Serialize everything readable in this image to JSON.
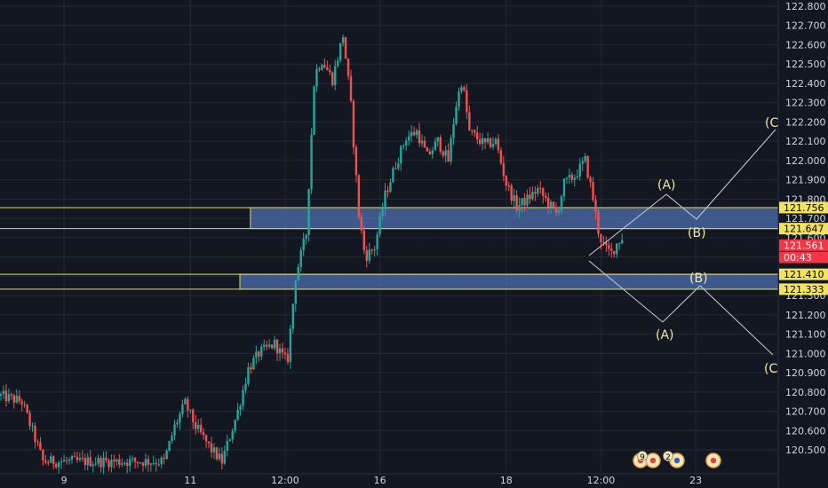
{
  "chart_data": {
    "type": "candlestick",
    "title": "",
    "xlabel": "",
    "ylabel": "",
    "ylim": [
      120.44,
      122.84
    ],
    "grid": true,
    "x_ticks": [
      {
        "label": "9",
        "slot": 6
      },
      {
        "label": "11",
        "slot": 18
      },
      {
        "label": "12:00",
        "slot": 27
      },
      {
        "label": "16",
        "slot": 36
      },
      {
        "label": "18",
        "slot": 48
      },
      {
        "label": "12:00",
        "slot": 57
      },
      {
        "label": "23",
        "slot": 66
      }
    ],
    "y_ticks": [
      120.5,
      120.6,
      120.7,
      120.8,
      120.9,
      121.0,
      121.1,
      121.2,
      121.3,
      121.4,
      121.5,
      121.6,
      121.7,
      121.8,
      121.9,
      122.0,
      122.1,
      122.2,
      122.3,
      122.4,
      122.5,
      122.6,
      122.7,
      122.8
    ],
    "y_tick_labels": [
      "120.500",
      "120.600",
      "120.700",
      "120.800",
      "120.900",
      "121.000",
      "121.100",
      "121.200",
      "121.300",
      "121.400",
      "121.500",
      "121.600",
      "121.700",
      "121.800",
      "121.900",
      "122.000",
      "122.100",
      "122.200",
      "122.300",
      "122.400",
      "122.500",
      "122.600",
      "122.700",
      "122.800"
    ],
    "price_path": [
      {
        "t": 0,
        "p": 120.78
      },
      {
        "t": 2,
        "p": 120.75
      },
      {
        "t": 3.5,
        "p": 120.52
      },
      {
        "t": 4,
        "p": 120.44
      },
      {
        "t": 15.5,
        "p": 120.44
      },
      {
        "t": 16.5,
        "p": 120.62
      },
      {
        "t": 17.5,
        "p": 120.74
      },
      {
        "t": 18.5,
        "p": 120.62
      },
      {
        "t": 20,
        "p": 120.5
      },
      {
        "t": 21,
        "p": 120.44
      },
      {
        "t": 22.5,
        "p": 120.7
      },
      {
        "t": 23.5,
        "p": 120.92
      },
      {
        "t": 24.5,
        "p": 121.0
      },
      {
        "t": 26,
        "p": 121.05
      },
      {
        "t": 27.2,
        "p": 120.95
      },
      {
        "t": 28,
        "p": 121.4
      },
      {
        "t": 29,
        "p": 121.62
      },
      {
        "t": 29.8,
        "p": 122.45
      },
      {
        "t": 30.5,
        "p": 122.52
      },
      {
        "t": 31.5,
        "p": 122.42
      },
      {
        "t": 32.5,
        "p": 122.65
      },
      {
        "t": 33.2,
        "p": 122.32
      },
      {
        "t": 34,
        "p": 121.72
      },
      {
        "t": 34.6,
        "p": 121.5
      },
      {
        "t": 35.5,
        "p": 121.55
      },
      {
        "t": 36.5,
        "p": 121.82
      },
      {
        "t": 37.5,
        "p": 121.98
      },
      {
        "t": 38.5,
        "p": 122.12
      },
      {
        "t": 39.5,
        "p": 122.15
      },
      {
        "t": 40.5,
        "p": 122.02
      },
      {
        "t": 41.5,
        "p": 122.1
      },
      {
        "t": 42.5,
        "p": 122.0
      },
      {
        "t": 43.2,
        "p": 122.28
      },
      {
        "t": 43.8,
        "p": 122.42
      },
      {
        "t": 44.5,
        "p": 122.15
      },
      {
        "t": 46,
        "p": 122.08
      },
      {
        "t": 47,
        "p": 122.1
      },
      {
        "t": 48,
        "p": 121.88
      },
      {
        "t": 49,
        "p": 121.76
      },
      {
        "t": 50,
        "p": 121.8
      },
      {
        "t": 51,
        "p": 121.85
      },
      {
        "t": 52,
        "p": 121.78
      },
      {
        "t": 52.8,
        "p": 121.72
      },
      {
        "t": 53.5,
        "p": 121.88
      },
      {
        "t": 54.5,
        "p": 121.92
      },
      {
        "t": 55.5,
        "p": 122.0
      },
      {
        "t": 56.2,
        "p": 121.82
      },
      {
        "t": 56.8,
        "p": 121.62
      },
      {
        "t": 57.4,
        "p": 121.54
      },
      {
        "t": 58,
        "p": 121.52
      },
      {
        "t": 58.6,
        "p": 121.58
      },
      {
        "t": 59,
        "p": 121.6
      }
    ],
    "zones": [
      {
        "top": 121.756,
        "bottom": 121.647,
        "from_slot": 23.7
      },
      {
        "top": 121.41,
        "bottom": 121.333,
        "from_slot": 22.7
      }
    ],
    "price_tags": [
      {
        "label": "121.756",
        "value": 121.756,
        "bg": "#f2e35c",
        "fg": "#000000"
      },
      {
        "label": "121.647",
        "value": 121.647,
        "bg": "#f2e35c",
        "fg": "#000000"
      },
      {
        "label": "121.561",
        "value": 121.561,
        "bg": "#f23645",
        "fg": "#ffffff"
      },
      {
        "label": "00:43",
        "value": 121.498,
        "bg": "#f23645",
        "fg": "#ffffff"
      },
      {
        "label": "121.410",
        "value": 121.41,
        "bg": "#f2e35c",
        "fg": "#000000"
      },
      {
        "label": "121.333",
        "value": 121.333,
        "bg": "#f2e35c",
        "fg": "#000000"
      }
    ],
    "wave_labels": [
      "(A)",
      "(B)",
      "(C",
      "(A)",
      "(B)",
      "(C"
    ],
    "events": [
      {
        "label": "9"
      },
      {
        "label": "2"
      }
    ],
    "colors": {
      "background": "#131722",
      "grid": "#242833",
      "up": "#26a69a",
      "down": "#ef5350",
      "zone_fill": "#4e6fb0",
      "zone_line": "#e6d84a",
      "wave_line": "#c9ccd4",
      "wave_label": "#f0e6a8"
    }
  }
}
